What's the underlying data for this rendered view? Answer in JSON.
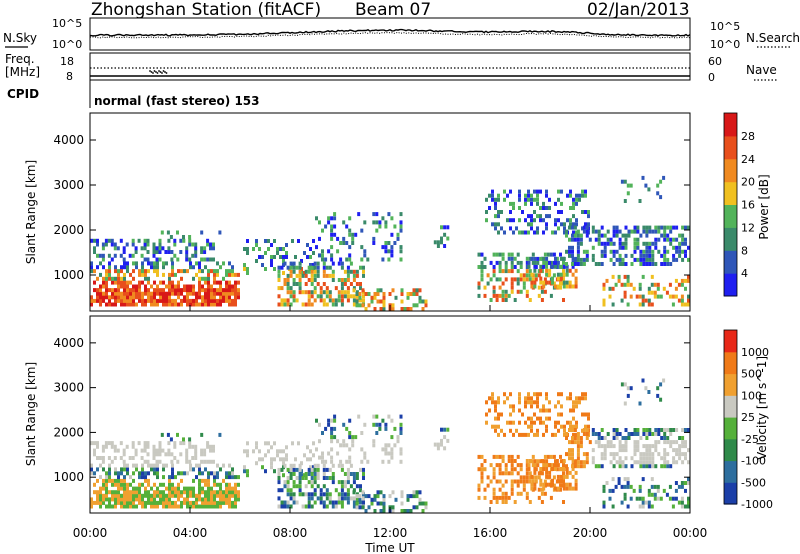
{
  "header": {
    "station": "Zhongshan Station (fitACF)",
    "beam": "Beam 07",
    "date": "02/Jan/2013"
  },
  "noise_panel": {
    "left_label": "N.Sky",
    "right_label": "N.Search",
    "left_ticks": [
      "10^5",
      "10^0"
    ],
    "right_ticks": [
      "10^5",
      "10^0"
    ]
  },
  "freq_panel": {
    "left_label_1": "Freq.",
    "left_label_2": "[MHz]",
    "left_ticks": [
      "18",
      "8"
    ],
    "right_label": "Nave",
    "right_ticks": [
      "60",
      "0"
    ],
    "cpid_label": "CPID",
    "cpid_text": "normal (fast stereo) 153"
  },
  "chart_data": [
    {
      "type": "heatmap",
      "name": "power",
      "ylabel": "Slant Range [km]",
      "yticks": [
        "1000",
        "2000",
        "3000",
        "4000"
      ],
      "ylim": [
        200,
        4600
      ],
      "xlim_hours": [
        0,
        24
      ],
      "colorbar": {
        "label": "Power [dB]",
        "ticks": [
          "4",
          "8",
          "12",
          "16",
          "20",
          "24",
          "28"
        ],
        "colors": [
          "#1f1ff0",
          "#2f56b8",
          "#3a8a6a",
          "#52b35a",
          "#f0c020",
          "#f08a20",
          "#e84f1c",
          "#d81818"
        ]
      }
    },
    {
      "type": "heatmap",
      "name": "velocity",
      "ylabel": "Slant Range [km]",
      "yticks": [
        "1000",
        "2000",
        "3000",
        "4000"
      ],
      "ylim": [
        200,
        4600
      ],
      "xlim_hours": [
        0,
        24
      ],
      "xlabel": "Time UT",
      "xticks": [
        "00:00",
        "04:00",
        "08:00",
        "12:00",
        "16:00",
        "20:00",
        "00:00"
      ],
      "colorbar": {
        "label": "Velocity [m s^-1]",
        "ticks": [
          "1000",
          "500",
          "100",
          "25",
          "-25",
          "-100",
          "-500",
          "-1000"
        ],
        "colors": [
          "#1b3fa8",
          "#2d6e9e",
          "#2f8a4a",
          "#55b03a",
          "#c9c9c1",
          "#f0a030",
          "#f07a18",
          "#e82818"
        ]
      }
    }
  ]
}
